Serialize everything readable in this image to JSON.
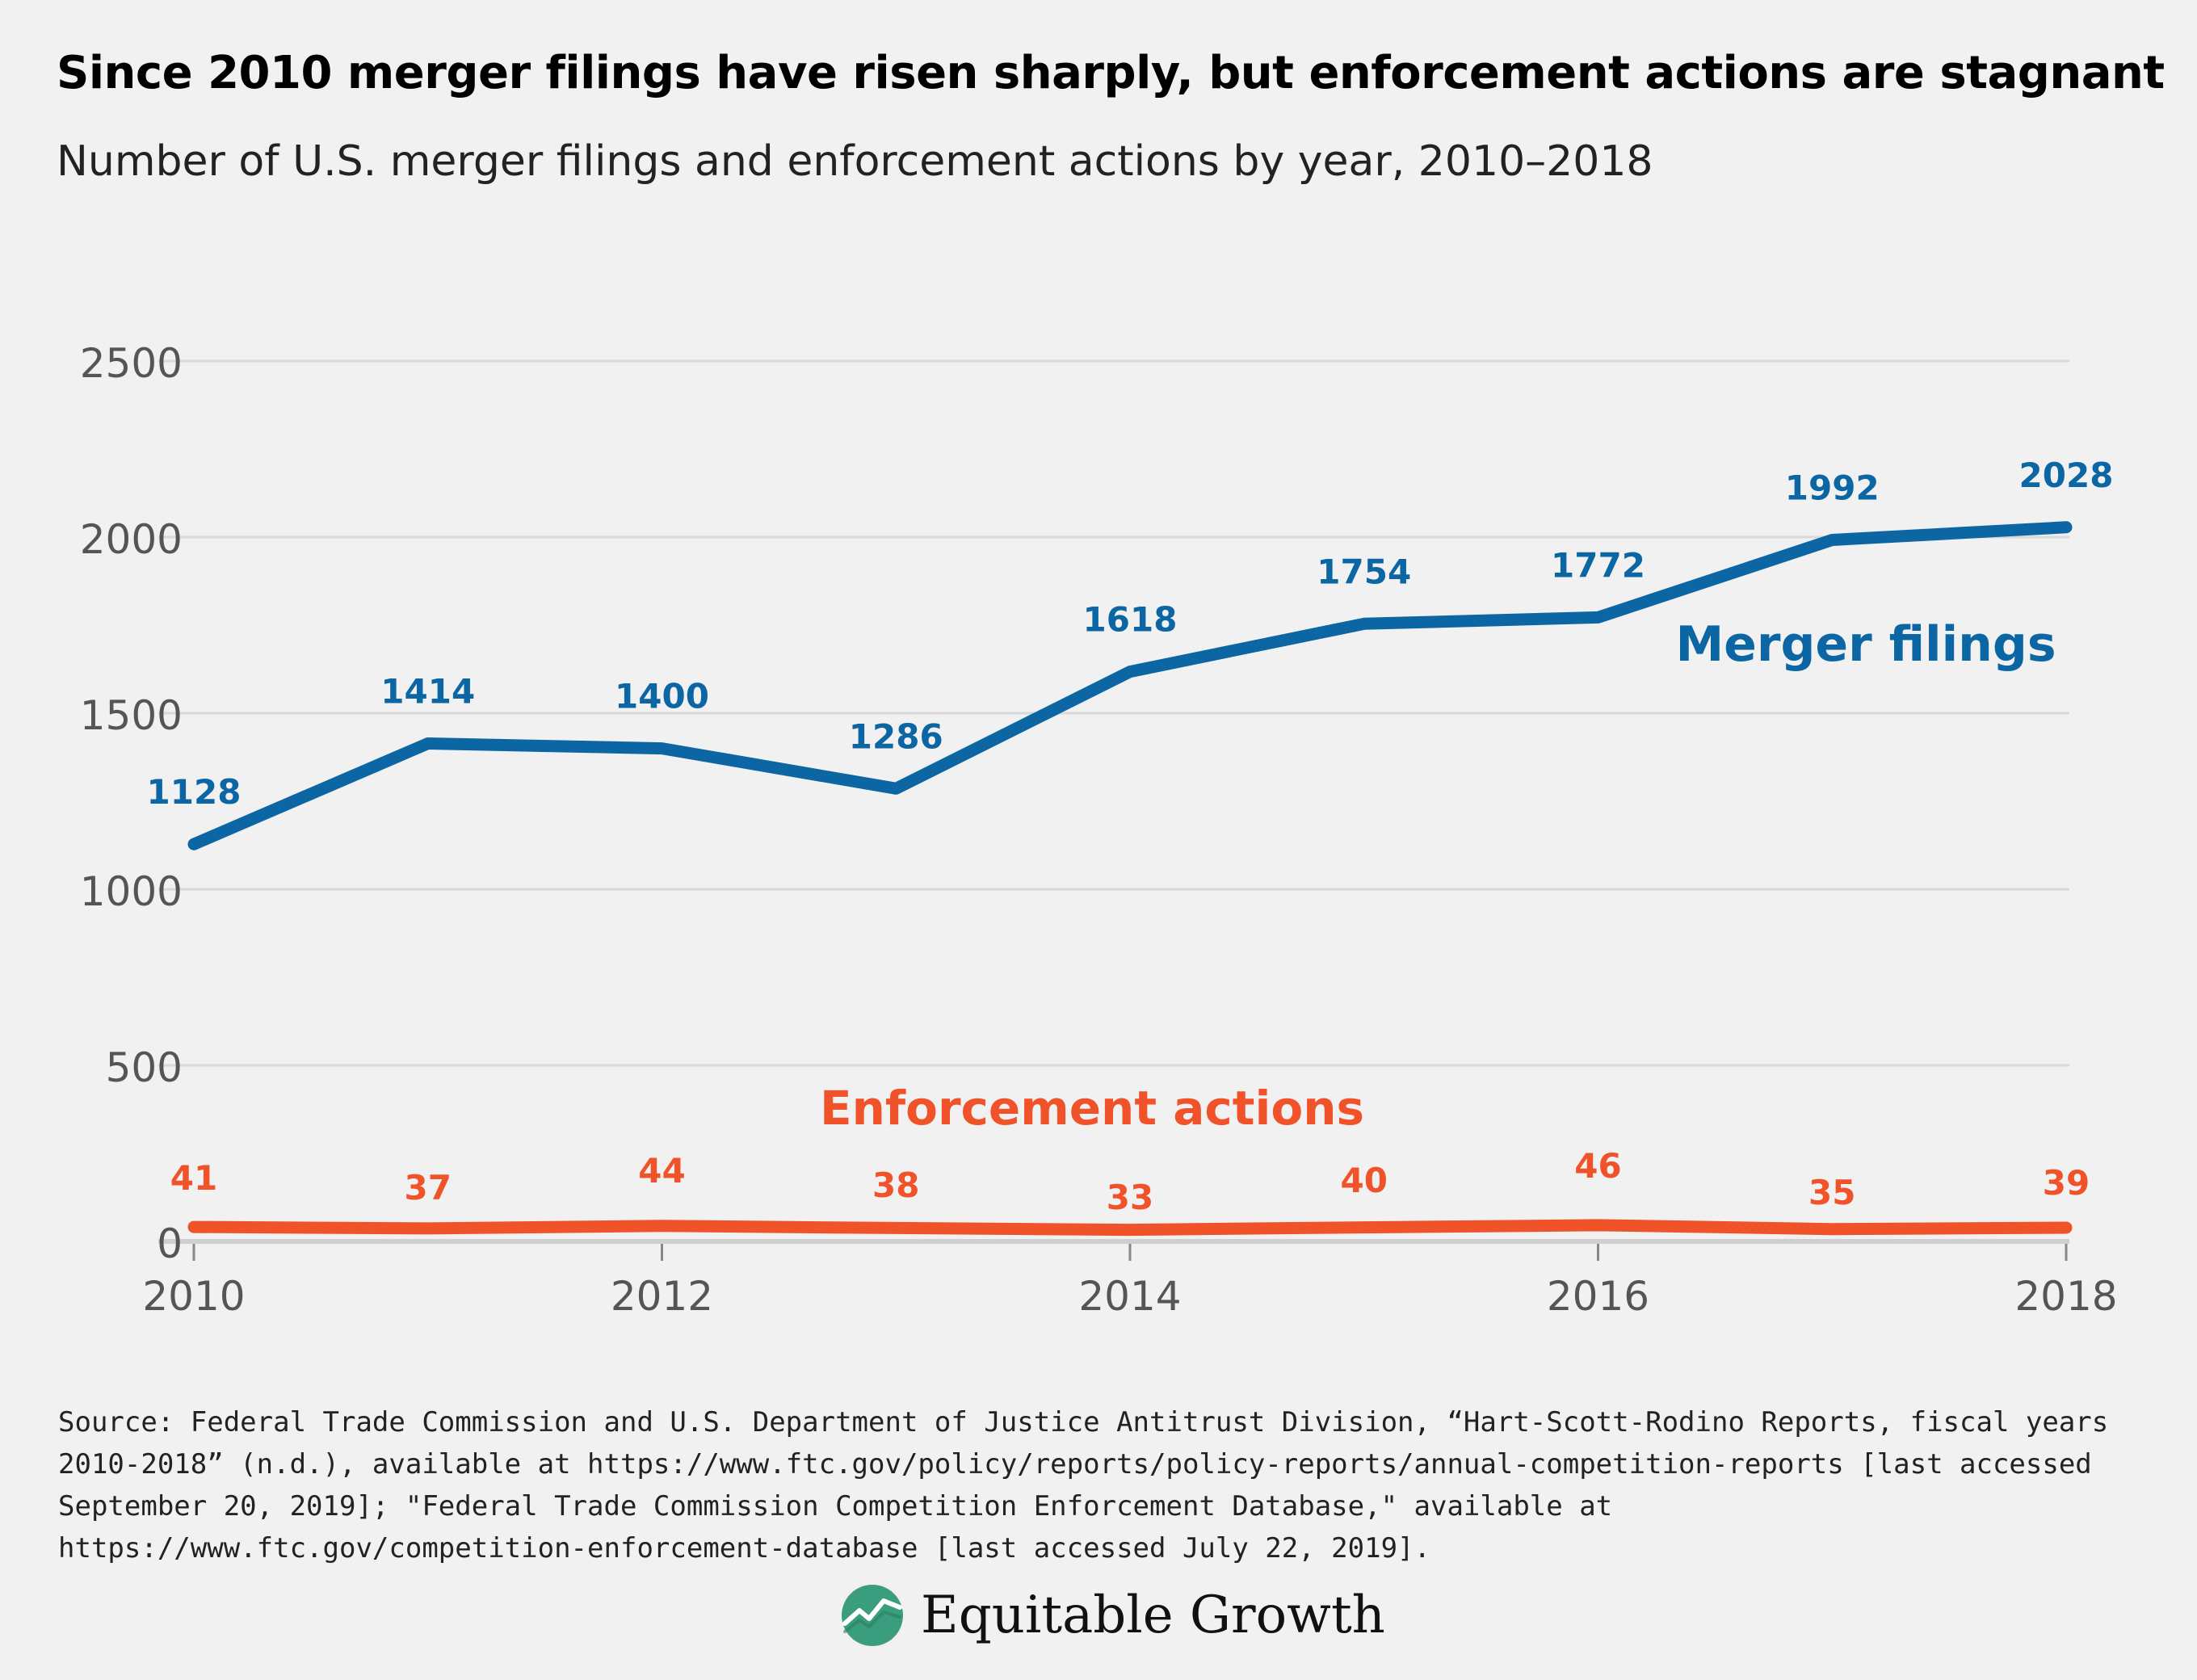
{
  "title": "Since 2010 merger filings have risen sharply, but enforcement actions are stagnant",
  "subtitle": "Number of U.S. merger filings and enforcement actions by year, 2010–2018",
  "chart_data": {
    "type": "line",
    "x": [
      2010,
      2011,
      2012,
      2013,
      2014,
      2015,
      2016,
      2017,
      2018
    ],
    "x_tick_labels": [
      "2010",
      "2012",
      "2014",
      "2016",
      "2018"
    ],
    "x_ticks": [
      2010,
      2012,
      2014,
      2016,
      2018
    ],
    "y_ticks": [
      0,
      500,
      1000,
      1500,
      2000,
      2500
    ],
    "y_tick_labels": [
      "0",
      "500",
      "1000",
      "1500",
      "2000",
      "2500"
    ],
    "ylim": [
      0,
      2500
    ],
    "xlim": [
      2010,
      2018
    ],
    "grid": true,
    "series": [
      {
        "name": "Merger filings",
        "color": "#0b66a3",
        "values": [
          1128,
          1414,
          1400,
          1286,
          1618,
          1754,
          1772,
          1992,
          2028
        ],
        "labels": [
          "1128",
          "1414",
          "1400",
          "1286",
          "1618",
          "1754",
          "1772",
          "1992",
          "2028"
        ]
      },
      {
        "name": "Enforcement actions",
        "color": "#f0522a",
        "values": [
          41,
          37,
          44,
          38,
          33,
          40,
          46,
          35,
          39
        ],
        "labels": [
          "41",
          "37",
          "44",
          "38",
          "33",
          "40",
          "46",
          "35",
          "39"
        ]
      }
    ]
  },
  "source": "Source: Federal Trade Commission and U.S. Department of Justice Antitrust Division, “Hart-Scott-Rodino Reports, fiscal years 2010-2018” (n.d.), available at https://www.ftc.gov/policy/reports/policy-reports/annual-competition-reports [last accessed September 20, 2019]; \"Federal Trade Commission Competition Enforcement Database,\" available at https://www.ftc.gov/competition-enforcement-database [last accessed July 22, 2019].",
  "logo": {
    "text": "Equitable Growth",
    "icon": "growth-chart-circle-icon",
    "icon_color": "#3a9e7e"
  }
}
